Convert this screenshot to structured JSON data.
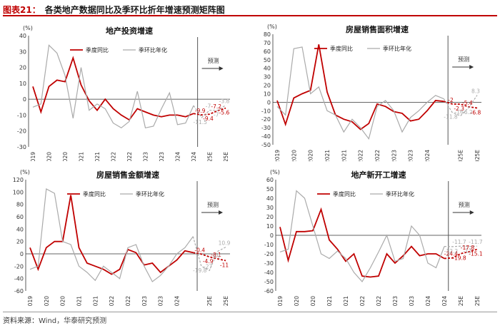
{
  "header": {
    "label": "图表21：",
    "title": "各类地产数据同比及季环比折年增速预测矩阵图"
  },
  "footer": {
    "source_label": "资料来源：",
    "source": "Wind，华泰研究预测"
  },
  "colors": {
    "yoy": "#c00000",
    "qoq": "#aaaaaa",
    "axis": "#333333"
  },
  "chart_data": [
    {
      "type": "line",
      "title": "地产投资增速",
      "unit": "(%)",
      "forecast_label": "预测",
      "ylim": [
        -30,
        40
      ],
      "yticks": [
        -30,
        -20,
        -10,
        0,
        10,
        20,
        30,
        40
      ],
      "xtick_labels": [
        "4Q2019",
        "2Q2020",
        "4Q2020",
        "2Q2021",
        "4Q2021",
        "2Q2022",
        "4Q2022",
        "2Q2023",
        "4Q2023",
        "2Q2024",
        "4Q2024",
        "2Q2025E",
        "4Q2025E"
      ],
      "categories": [
        "4Q2019",
        "1Q2020",
        "2Q2020",
        "3Q2020",
        "4Q2020",
        "1Q2021",
        "2Q2021",
        "3Q2021",
        "4Q2021",
        "1Q2022",
        "2Q2022",
        "3Q2022",
        "4Q2022",
        "1Q2023",
        "2Q2023",
        "3Q2023",
        "4Q2023",
        "1Q2024",
        "2Q2024",
        "3Q2024",
        "4Q2024",
        "1Q2025E",
        "2Q2025E",
        "3Q2025E",
        "4Q2025E"
      ],
      "forecast_start": 21,
      "series": [
        {
          "name": "季度同比",
          "values": [
            8,
            -8,
            8,
            12,
            11,
            26,
            9,
            -1,
            -7,
            0,
            -6,
            -10,
            -13,
            -6,
            -8,
            -10,
            -11,
            -10,
            -10,
            -11,
            -9,
            -9.9,
            -9.4,
            -7.2,
            -5.6
          ]
        },
        {
          "name": "季环比年化",
          "values": [
            -5,
            -3,
            34,
            29,
            15,
            -12,
            20,
            -7,
            -3,
            -6,
            -15,
            -18,
            -14,
            5,
            -18,
            -17,
            -6,
            4,
            -16,
            -15,
            -4,
            -11.5,
            -7.0,
            -7.0,
            -3.8
          ]
        }
      ],
      "annotations": [
        "-5.6",
        "-7.2",
        "-9.4",
        "-9.9",
        "-11.5",
        "-7.0",
        "-3.8"
      ]
    },
    {
      "type": "line",
      "title": "房屋销售面积增速",
      "unit": "(%)",
      "forecast_label": "预测",
      "ylim": [
        -50,
        80
      ],
      "yticks": [
        -50,
        -40,
        -30,
        -20,
        -10,
        0,
        10,
        20,
        30,
        40,
        50,
        60,
        70,
        80
      ],
      "xtick_labels": [
        "4Q2019",
        "2Q2020",
        "4Q2020",
        "2Q2021",
        "4Q2021",
        "2Q2022",
        "4Q2022",
        "2Q2023",
        "4Q2023",
        "2Q2024",
        "2Q2025E",
        "4Q2025E"
      ],
      "categories": [
        "4Q2019",
        "1Q2020",
        "2Q2020",
        "3Q2020",
        "4Q2020",
        "1Q2021",
        "2Q2021",
        "3Q2021",
        "4Q2021",
        "1Q2022",
        "2Q2022",
        "3Q2022",
        "4Q2022",
        "1Q2023",
        "2Q2023",
        "3Q2023",
        "4Q2023",
        "1Q2024",
        "2Q2024",
        "3Q2024",
        "4Q2024",
        "1Q2025E",
        "2Q2025E",
        "3Q2025E",
        "4Q2025E"
      ],
      "forecast_start": 21,
      "series": [
        {
          "name": "季度同比",
          "values": [
            2,
            -26,
            5,
            10,
            14,
            68,
            12,
            -15,
            -20,
            -23,
            -32,
            -25,
            -2,
            -5,
            -11,
            -13,
            -22,
            -20,
            -10,
            2,
            1,
            -2.0,
            -2.3,
            -5.4,
            -6.8
          ]
        },
        {
          "name": "季环比年化",
          "values": [
            -5,
            -15,
            63,
            65,
            10,
            18,
            -10,
            -15,
            -35,
            -20,
            -30,
            -43,
            -5,
            2,
            -10,
            -35,
            -18,
            -10,
            0,
            8,
            4,
            -11.8,
            -16.0,
            -6.2,
            8.3
          ]
        }
      ],
      "annotations": [
        "-2.0",
        "-2.3",
        "-5.4",
        "-6.8",
        "-11.8",
        "-16.0",
        "-6.2",
        "8.3"
      ]
    },
    {
      "type": "line",
      "title": "房屋销售金额增速",
      "unit": "(%)",
      "forecast_label": "预测",
      "ylim": [
        -60,
        120
      ],
      "yticks": [
        -60,
        -40,
        -20,
        0,
        20,
        40,
        60,
        80,
        100,
        120
      ],
      "xtick_labels": [
        "4Q2019",
        "2Q2020",
        "4Q2020",
        "2Q2021",
        "4Q2021",
        "2Q2022",
        "4Q2022",
        "2Q2023",
        "4Q2023",
        "2Q2024",
        "2Q2025E",
        "4Q2025E"
      ],
      "categories": [
        "4Q2019",
        "1Q2020",
        "2Q2020",
        "3Q2020",
        "4Q2020",
        "1Q2021",
        "2Q2021",
        "3Q2021",
        "4Q2021",
        "1Q2022",
        "2Q2022",
        "3Q2022",
        "4Q2022",
        "1Q2023",
        "2Q2023",
        "3Q2023",
        "4Q2023",
        "1Q2024",
        "2Q2024",
        "3Q2024",
        "4Q2024",
        "1Q2025E",
        "2Q2025E",
        "3Q2025E",
        "4Q2025E"
      ],
      "forecast_start": 21,
      "series": [
        {
          "name": "季度同比",
          "values": [
            10,
            -25,
            10,
            20,
            20,
            95,
            10,
            -15,
            -20,
            -25,
            -33,
            -25,
            7,
            2,
            -18,
            -15,
            -30,
            -20,
            -10,
            5,
            2,
            -0.4,
            -4.9,
            -8.1,
            -11.0
          ]
        },
        {
          "name": "季环比年化",
          "values": [
            -25,
            -20,
            105,
            98,
            20,
            15,
            -20,
            -30,
            -43,
            -20,
            -30,
            -40,
            10,
            15,
            -20,
            -45,
            -35,
            -20,
            0,
            10,
            28,
            -19.8,
            -27.0,
            3.9,
            10.9
          ]
        }
      ],
      "annotations": [
        "-0.4",
        "-4.9",
        "-8.1",
        "-11.0",
        "-19.8",
        "-27.0",
        "3.9",
        "10.9"
      ]
    },
    {
      "type": "line",
      "title": "地产新开工增速",
      "unit": "(%)",
      "forecast_label": "预测",
      "ylim": [
        -60,
        60
      ],
      "yticks": [
        -60,
        -50,
        -40,
        -30,
        -20,
        -10,
        0,
        10,
        20,
        30,
        40,
        50,
        60
      ],
      "xtick_labels": [
        "4Q2019",
        "2Q2020",
        "4Q2020",
        "2Q2021",
        "4Q2021",
        "2Q2022",
        "4Q2022",
        "2Q2023",
        "4Q2023",
        "2Q2024",
        "4Q2024",
        "2Q2025E",
        "4Q2025E"
      ],
      "categories": [
        "4Q2019",
        "1Q2020",
        "2Q2020",
        "3Q2020",
        "4Q2020",
        "1Q2021",
        "2Q2021",
        "3Q2021",
        "4Q2021",
        "1Q2022",
        "2Q2022",
        "3Q2022",
        "4Q2022",
        "1Q2023",
        "2Q2023",
        "3Q2023",
        "4Q2023",
        "1Q2024",
        "2Q2024",
        "3Q2024",
        "4Q2024",
        "1Q2025E",
        "2Q2025E",
        "3Q2025E",
        "4Q2025E"
      ],
      "forecast_start": 21,
      "series": [
        {
          "name": "季度同比",
          "values": [
            9,
            -27,
            4,
            4,
            5,
            28,
            -5,
            -15,
            -28,
            -20,
            -44,
            -45,
            -44,
            -20,
            -30,
            -22,
            -12,
            -22,
            -20,
            -20,
            -25,
            -24.4,
            -19.8,
            -17.8,
            -15.1
          ]
        },
        {
          "name": "季环比年化",
          "values": [
            -18,
            -15,
            48,
            40,
            10,
            -20,
            -25,
            -17,
            -25,
            -40,
            -50,
            -35,
            -18,
            0,
            -28,
            -25,
            10,
            0,
            -30,
            -35,
            -12,
            -12.2,
            -11.7,
            -12.0,
            -11.7
          ]
        }
      ],
      "annotations": [
        "-24.4",
        "-19.8",
        "-17.8",
        "-15.1",
        "-12.2",
        "-11.7"
      ]
    }
  ]
}
